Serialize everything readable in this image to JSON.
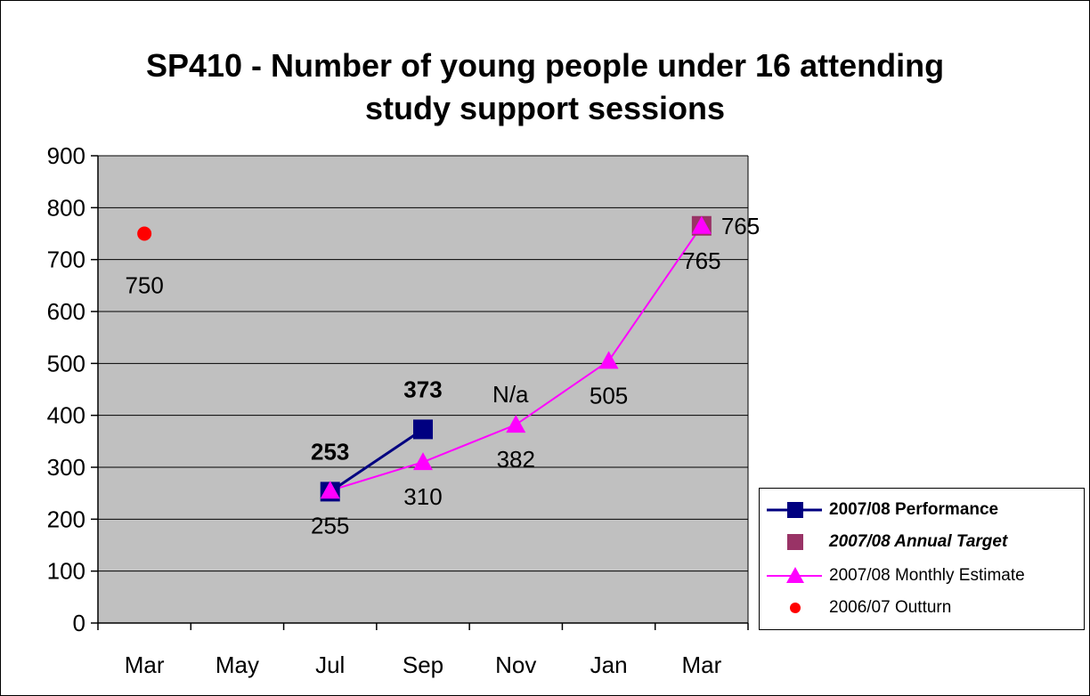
{
  "chart_data": {
    "type": "line",
    "title_lines": [
      "SP410 - Number of young people under 16 attending",
      "study support sessions"
    ],
    "categories": [
      "Mar",
      "May",
      "Jul",
      "Sep",
      "Nov",
      "Jan",
      "Mar"
    ],
    "ylim": [
      0,
      900
    ],
    "yticks": [
      0,
      100,
      200,
      300,
      400,
      500,
      600,
      700,
      800,
      900
    ],
    "grid": true,
    "legend_position": "bottom-right",
    "plot_background": "#c0c0c0",
    "series": [
      {
        "name": "2007/08 Performance",
        "color": "#000080",
        "marker": "square",
        "points": [
          {
            "category_index": 2,
            "y": 253,
            "label": "253"
          },
          {
            "category_index": 3,
            "y": 373,
            "label": "373"
          }
        ]
      },
      {
        "name": "2007/08 Annual Target",
        "color": "#993366",
        "marker": "square",
        "points": [
          {
            "category_index": 6,
            "y": 765,
            "label": "765"
          }
        ]
      },
      {
        "name": "2007/08 Monthly Estimate",
        "color": "#ff00ff",
        "marker": "triangle",
        "points": [
          {
            "category_index": 2,
            "y": 255,
            "label": "255"
          },
          {
            "category_index": 3,
            "y": 310,
            "label": "310"
          },
          {
            "category_index": 4,
            "y": 382,
            "label": "382"
          },
          {
            "category_index": 5,
            "y": 505,
            "label": "505"
          },
          {
            "category_index": 6,
            "y": 765,
            "label": "765"
          }
        ]
      },
      {
        "name": "2006/07 Outturn",
        "color": "#ff0000",
        "marker": "circle",
        "points": [
          {
            "category_index": 0,
            "y": 750,
            "label": "750"
          }
        ]
      }
    ],
    "annotations": [
      {
        "category_index": 4,
        "text": "N/a"
      }
    ]
  }
}
